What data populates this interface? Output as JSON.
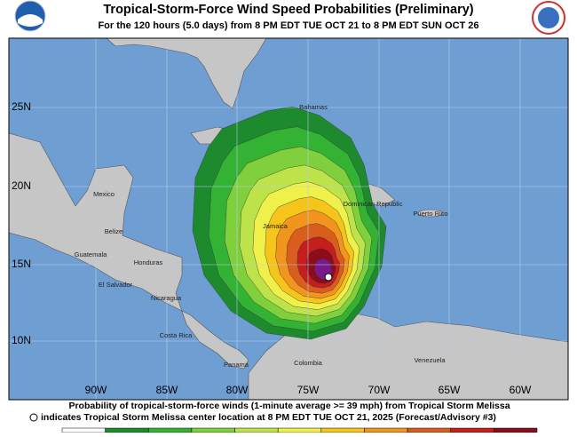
{
  "header": {
    "title": "Tropical-Storm-Force Wind Speed Probabilities (Preliminary)",
    "subtitle": "For the 120 hours (5.0 days) from 8 PM EDT TUE OCT 21 to 8 PM EDT SUN OCT 26"
  },
  "map": {
    "lat_labels": [
      "25N",
      "20N",
      "15N",
      "10N"
    ],
    "lon_labels": [
      "90W",
      "85W",
      "80W",
      "75W",
      "70W",
      "65W",
      "60W"
    ],
    "place_labels": [
      "Bahamas",
      "Mexico",
      "Belize",
      "Guatemala",
      "Honduras",
      "El Salvador",
      "Nicaragua",
      "Costa Rica",
      "Panama",
      "Colombia",
      "Venezuela",
      "Jamaica",
      "Dominican Republic",
      "Puerto Rico"
    ]
  },
  "footer": {
    "line1": "Probability of tropical-storm-force winds (1-minute average >= 39 mph) from Tropical Storm Melissa",
    "line2": "indicates Tropical Storm Melissa center location at 8 PM EDT TUE OCT 21, 2025 (Forecast/Advisory #3)"
  }
}
